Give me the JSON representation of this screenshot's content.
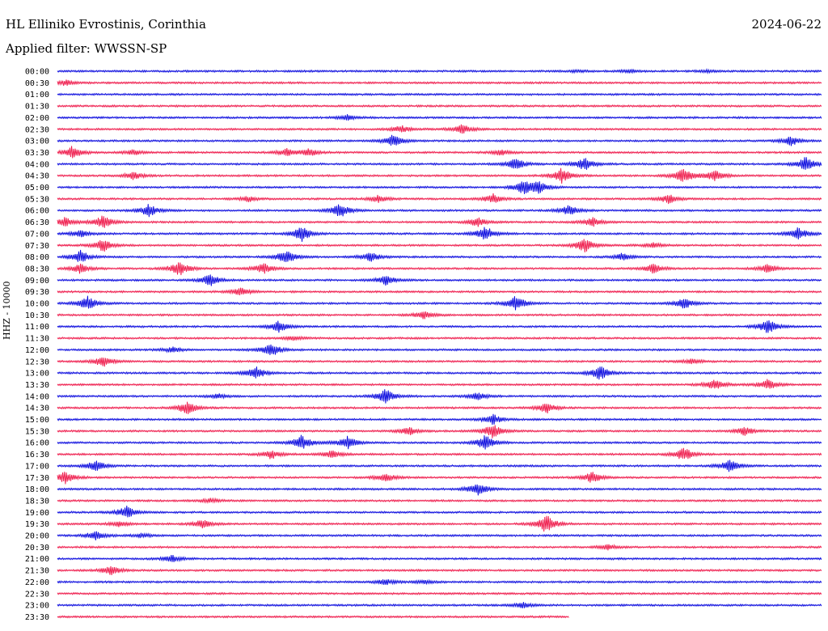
{
  "header": {
    "station": "HL Elliniko Evrostinis, Corinthia",
    "filter": "Applied filter: WWSSN-SP",
    "date": "2024-06-22"
  },
  "channel_label": "HHZ - 10000",
  "colors": {
    "even": "#0000dd",
    "odd": "#ee1144"
  },
  "chart_data": {
    "type": "line",
    "title": "HL Elliniko Evrostinis, Corinthia",
    "subtitle": "Applied filter: WWSSN-SP",
    "ylabel": "HHZ - 10000",
    "xlabel": "",
    "grid": false,
    "legend": "none",
    "row_labels": [
      "00:00",
      "00:30",
      "01:00",
      "01:30",
      "02:00",
      "02:30",
      "03:00",
      "03:30",
      "04:00",
      "04:30",
      "05:00",
      "05:30",
      "06:00",
      "06:30",
      "07:00",
      "07:30",
      "08:00",
      "08:30",
      "09:00",
      "09:30",
      "10:00",
      "10:30",
      "11:00",
      "11:30",
      "12:00",
      "12:30",
      "13:00",
      "13:30",
      "14:00",
      "14:30",
      "15:00",
      "15:30",
      "16:00",
      "16:30",
      "17:00",
      "17:30",
      "18:00",
      "18:30",
      "19:00",
      "19:30",
      "20:00",
      "20:30",
      "21:00",
      "21:30",
      "22:00",
      "22:30",
      "23:00",
      "23:30"
    ],
    "row_extent_fraction": [
      [
        0,
        1
      ],
      [
        0,
        1
      ],
      [
        0,
        1
      ],
      [
        0,
        1
      ],
      [
        0,
        1
      ],
      [
        0,
        1
      ],
      [
        0,
        1
      ],
      [
        0,
        1
      ],
      [
        0,
        1
      ],
      [
        0,
        1
      ],
      [
        0,
        1
      ],
      [
        0,
        1
      ],
      [
        0,
        1
      ],
      [
        0,
        1
      ],
      [
        0,
        1
      ],
      [
        0,
        1
      ],
      [
        0,
        1
      ],
      [
        0,
        1
      ],
      [
        0,
        1
      ],
      [
        0,
        1
      ],
      [
        0,
        1
      ],
      [
        0,
        1
      ],
      [
        0,
        1
      ],
      [
        0,
        1
      ],
      [
        0,
        1
      ],
      [
        0,
        1
      ],
      [
        0,
        1
      ],
      [
        0,
        1
      ],
      [
        0,
        1
      ],
      [
        0,
        1
      ],
      [
        0,
        1
      ],
      [
        0,
        1
      ],
      [
        0,
        1
      ],
      [
        0,
        1
      ],
      [
        0,
        1
      ],
      [
        0,
        1
      ],
      [
        0,
        1
      ],
      [
        0,
        1
      ],
      [
        0,
        1
      ],
      [
        0,
        1
      ],
      [
        0,
        1
      ],
      [
        0,
        1
      ],
      [
        0,
        1
      ],
      [
        0,
        1
      ],
      [
        0,
        1
      ],
      [
        0,
        1
      ],
      [
        0,
        1
      ],
      [
        0,
        0.67
      ]
    ],
    "events_fraction_amplitude": [
      [
        [
          0.68,
          0.6
        ],
        [
          0.75,
          0.8
        ],
        [
          0.85,
          0.7
        ]
      ],
      [
        [
          0.01,
          1.5
        ]
      ],
      [],
      [],
      [
        [
          0.38,
          1.6
        ]
      ],
      [
        [
          0.45,
          2.0
        ],
        [
          0.53,
          2.5
        ]
      ],
      [
        [
          0.44,
          3.5
        ],
        [
          0.96,
          2.5
        ]
      ],
      [
        [
          0.02,
          3.5
        ],
        [
          0.1,
          1.5
        ],
        [
          0.3,
          2.0
        ],
        [
          0.33,
          2.0
        ],
        [
          0.58,
          1.5
        ]
      ],
      [
        [
          0.6,
          3.2
        ],
        [
          0.69,
          3.5
        ],
        [
          0.98,
          4.0
        ]
      ],
      [
        [
          0.1,
          2.0
        ],
        [
          0.66,
          4.0
        ],
        [
          0.82,
          4.0
        ],
        [
          0.86,
          3.2
        ]
      ],
      [
        [
          0.61,
          3.5
        ],
        [
          0.63,
          3.0
        ]
      ],
      [
        [
          0.25,
          1.6
        ],
        [
          0.42,
          1.8
        ],
        [
          0.57,
          2.5
        ],
        [
          0.8,
          2.5
        ]
      ],
      [
        [
          0.12,
          3.5
        ],
        [
          0.37,
          4.0
        ],
        [
          0.67,
          2.8
        ]
      ],
      [
        [
          0.01,
          2.5
        ],
        [
          0.06,
          3.5
        ],
        [
          0.55,
          2.5
        ],
        [
          0.7,
          2.5
        ]
      ],
      [
        [
          0.03,
          2.0
        ],
        [
          0.32,
          4.0
        ],
        [
          0.56,
          4.0
        ],
        [
          0.97,
          3.5
        ]
      ],
      [
        [
          0.06,
          3.5
        ],
        [
          0.69,
          4.0
        ],
        [
          0.78,
          1.5
        ]
      ],
      [
        [
          0.03,
          3.5
        ],
        [
          0.3,
          4.0
        ],
        [
          0.41,
          2.5
        ],
        [
          0.74,
          2.0
        ]
      ],
      [
        [
          0.03,
          2.5
        ],
        [
          0.16,
          4.0
        ],
        [
          0.27,
          3.0
        ],
        [
          0.78,
          2.5
        ],
        [
          0.93,
          2.5
        ]
      ],
      [
        [
          0.2,
          3.5
        ],
        [
          0.43,
          2.5
        ]
      ],
      [
        [
          0.24,
          2.5
        ]
      ],
      [
        [
          0.04,
          3.8
        ],
        [
          0.6,
          4.0
        ],
        [
          0.82,
          3.2
        ]
      ],
      [
        [
          0.48,
          2.2
        ]
      ],
      [
        [
          0.29,
          3.0
        ],
        [
          0.93,
          4.0
        ]
      ],
      [
        [
          0.31,
          1.2
        ]
      ],
      [
        [
          0.15,
          1.5
        ],
        [
          0.28,
          3.6
        ]
      ],
      [
        [
          0.06,
          3.0
        ],
        [
          0.83,
          1.6
        ]
      ],
      [
        [
          0.26,
          3.6
        ],
        [
          0.71,
          4.0
        ]
      ],
      [
        [
          0.86,
          3.0
        ],
        [
          0.93,
          2.8
        ]
      ],
      [
        [
          0.21,
          1.2
        ],
        [
          0.43,
          4.0
        ],
        [
          0.55,
          2.0
        ]
      ],
      [
        [
          0.17,
          3.5
        ],
        [
          0.64,
          3.0
        ]
      ],
      [
        [
          0.57,
          3.0
        ]
      ],
      [
        [
          0.46,
          2.4
        ],
        [
          0.57,
          3.8
        ],
        [
          0.9,
          2.5
        ]
      ],
      [
        [
          0.32,
          4.0
        ],
        [
          0.38,
          3.5
        ],
        [
          0.56,
          4.0
        ]
      ],
      [
        [
          0.28,
          2.5
        ],
        [
          0.36,
          2.2
        ],
        [
          0.82,
          4.0
        ]
      ],
      [
        [
          0.05,
          3.0
        ],
        [
          0.88,
          3.5
        ]
      ],
      [
        [
          0.01,
          3.5
        ],
        [
          0.43,
          2.5
        ],
        [
          0.7,
          3.0
        ]
      ],
      [
        [
          0.55,
          3.6
        ]
      ],
      [
        [
          0.2,
          1.2
        ]
      ],
      [
        [
          0.09,
          3.5
        ]
      ],
      [
        [
          0.08,
          1.5
        ],
        [
          0.19,
          2.5
        ],
        [
          0.64,
          5.0
        ]
      ],
      [
        [
          0.05,
          2.5
        ],
        [
          0.11,
          1.2
        ]
      ],
      [
        [
          0.72,
          1.5
        ]
      ],
      [
        [
          0.15,
          1.8
        ]
      ],
      [
        [
          0.07,
          2.5
        ]
      ],
      [
        [
          0.43,
          1.5
        ],
        [
          0.48,
          1.0
        ]
      ],
      [],
      [
        [
          0.61,
          1.6
        ]
      ],
      []
    ]
  }
}
